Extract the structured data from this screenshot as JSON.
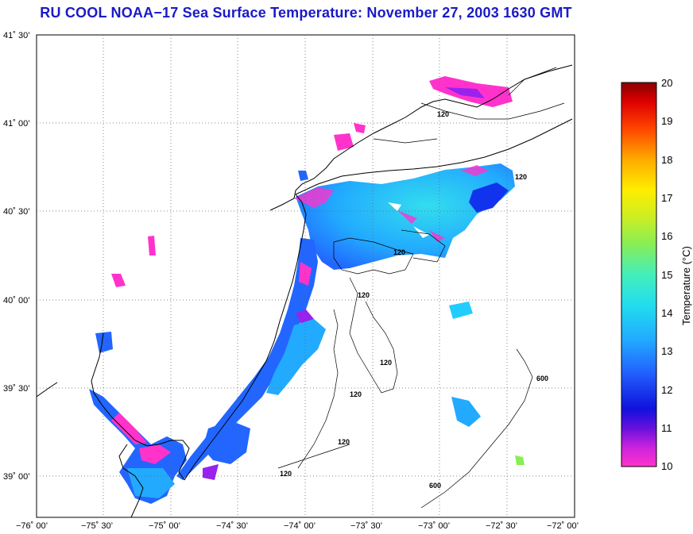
{
  "title": "RU COOL  NOAA−17  Sea Surface Temperature:  November 27, 2003 1630 GMT",
  "map": {
    "lon_labels": [
      "−76˚ 00’",
      "−75˚ 30’",
      "−75˚ 00’",
      "−74˚ 30’",
      "−74˚ 00’",
      "−73˚ 30’",
      "−73˚ 00’",
      "−72˚ 30’",
      "−72˚ 00’"
    ],
    "lat_labels": [
      "41˚ 30’",
      "41˚ 00’",
      "40˚ 30’",
      "40˚ 00’",
      "39˚ 30’",
      "39˚ 00’"
    ],
    "contour_labels": [
      "120",
      "120",
      "120",
      "120",
      "120",
      "120",
      "120",
      "120",
      "600",
      "600"
    ]
  },
  "colorbar": {
    "title": "Temperature (°C)",
    "ticks": [
      "20",
      "19",
      "18",
      "17",
      "16",
      "15",
      "14",
      "13",
      "12",
      "11",
      "10"
    ],
    "range": [
      10,
      20
    ],
    "colors": [
      "#ff33cc",
      "#9922ee",
      "#1111dd",
      "#2266ff",
      "#22aaff",
      "#22ddee",
      "#66ee99",
      "#aaee33",
      "#ffee00",
      "#ffaa00",
      "#ff5500",
      "#ee1100",
      "#990000"
    ]
  }
}
